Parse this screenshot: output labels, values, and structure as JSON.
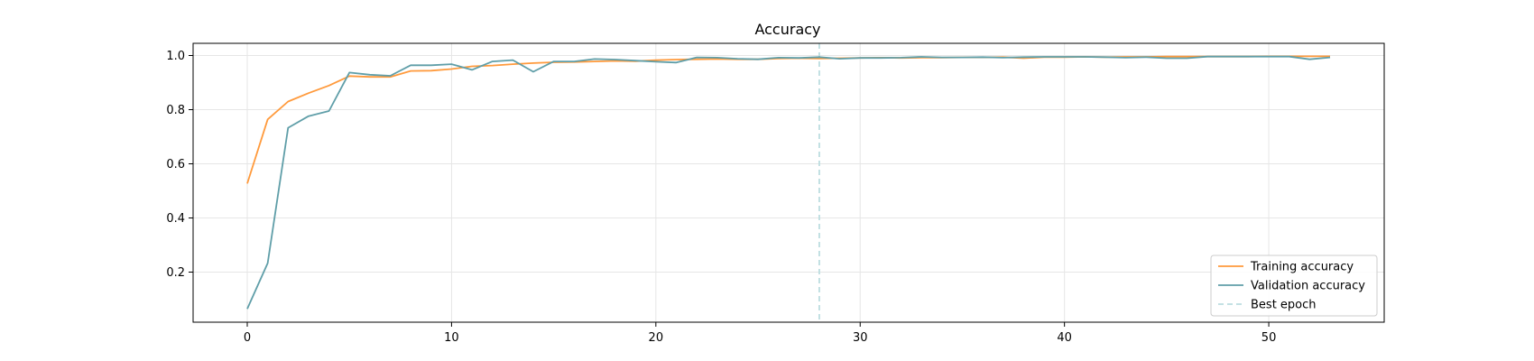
{
  "chart_data": {
    "type": "line",
    "title": "Accuracy",
    "xlabel": "",
    "ylabel": "",
    "xlim": [
      -2.65,
      55.65
    ],
    "ylim": [
      0.015,
      1.045
    ],
    "xticks": [
      0,
      10,
      20,
      30,
      40,
      50
    ],
    "yticks": [
      0.2,
      0.4,
      0.6,
      0.8,
      1.0
    ],
    "ytick_labels": [
      "0.2",
      "0.4",
      "0.6",
      "0.8",
      "1.0"
    ],
    "grid": true,
    "legend_position": "bottom-right",
    "x": [
      0,
      1,
      2,
      3,
      4,
      5,
      6,
      7,
      8,
      9,
      10,
      11,
      12,
      13,
      14,
      15,
      16,
      17,
      18,
      19,
      20,
      21,
      22,
      23,
      24,
      25,
      26,
      27,
      28,
      29,
      30,
      31,
      32,
      33,
      34,
      35,
      36,
      37,
      38,
      39,
      40,
      41,
      42,
      43,
      44,
      45,
      46,
      47,
      48,
      49,
      50,
      51,
      52,
      53
    ],
    "series": [
      {
        "name": "Training accuracy",
        "color": "#ff9a3c",
        "values": [
          0.527,
          0.764,
          0.83,
          0.861,
          0.889,
          0.924,
          0.921,
          0.921,
          0.943,
          0.944,
          0.95,
          0.96,
          0.963,
          0.968,
          0.972,
          0.975,
          0.976,
          0.978,
          0.98,
          0.979,
          0.983,
          0.985,
          0.986,
          0.987,
          0.986,
          0.986,
          0.989,
          0.99,
          0.989,
          0.99,
          0.991,
          0.992,
          0.991,
          0.992,
          0.992,
          0.993,
          0.993,
          0.994,
          0.99,
          0.994,
          0.994,
          0.995,
          0.994,
          0.995,
          0.995,
          0.996,
          0.996,
          0.996,
          0.996,
          0.996,
          0.997,
          0.997,
          0.997,
          0.997
        ]
      },
      {
        "name": "Validation accuracy",
        "color": "#5f9ea8",
        "values": [
          0.064,
          0.233,
          0.733,
          0.776,
          0.795,
          0.937,
          0.929,
          0.925,
          0.964,
          0.964,
          0.968,
          0.947,
          0.978,
          0.983,
          0.94,
          0.978,
          0.978,
          0.987,
          0.985,
          0.981,
          0.977,
          0.974,
          0.993,
          0.992,
          0.988,
          0.986,
          0.992,
          0.991,
          0.994,
          0.988,
          0.991,
          0.991,
          0.992,
          0.995,
          0.993,
          0.993,
          0.994,
          0.992,
          0.994,
          0.995,
          0.995,
          0.995,
          0.994,
          0.992,
          0.994,
          0.99,
          0.99,
          0.996,
          0.996,
          0.996,
          0.996,
          0.996,
          0.986,
          0.993
        ]
      }
    ],
    "best_epoch": {
      "name": "Best epoch",
      "x": 28,
      "color": "#bcdde0"
    }
  }
}
